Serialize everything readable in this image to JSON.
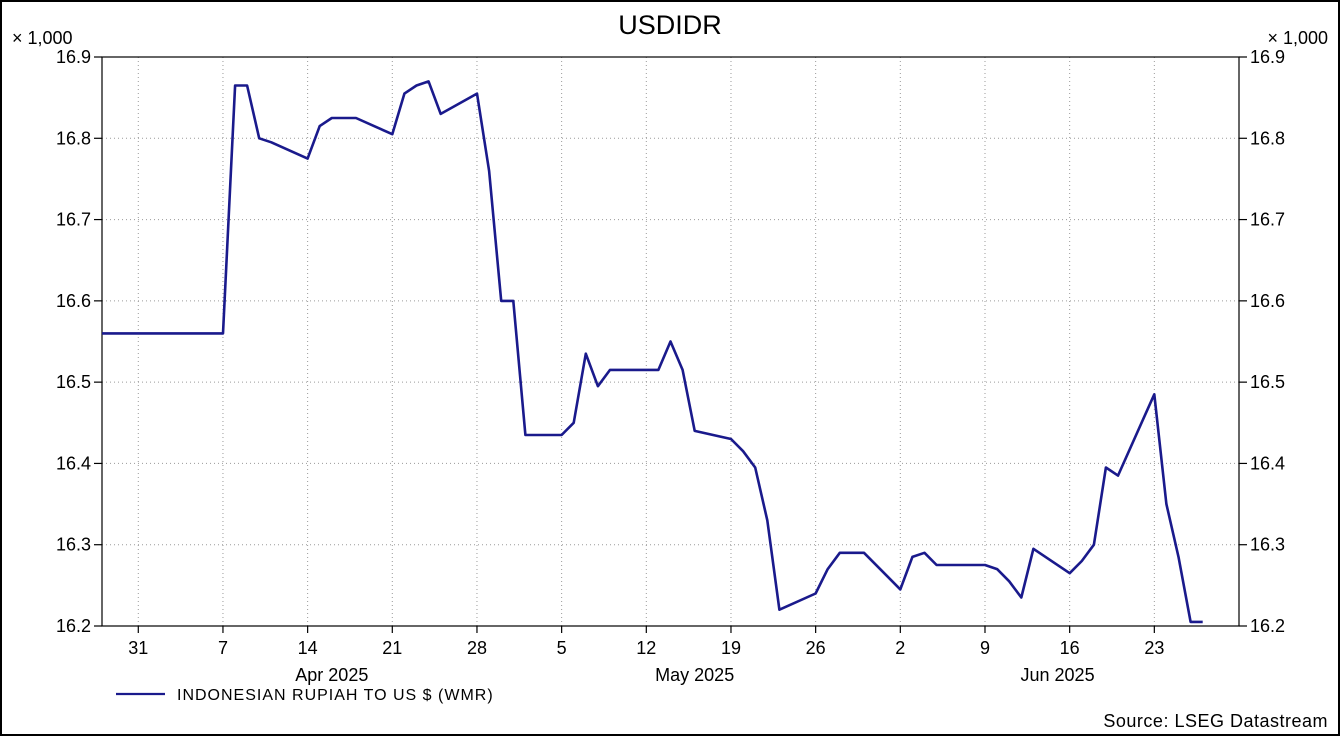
{
  "chart_data": {
    "type": "line",
    "title": "USDIDR",
    "unit_label": "× 1,000",
    "ylim": [
      16.2,
      16.9
    ],
    "y_ticks": [
      "16.2",
      "16.3",
      "16.4",
      "16.5",
      "16.6",
      "16.7",
      "16.8",
      "16.9"
    ],
    "x_range": [
      "2025-03-28",
      "2025-06-30"
    ],
    "x_ticks": [
      {
        "date": "2025-03-31",
        "label": "31"
      },
      {
        "date": "2025-04-07",
        "label": "7"
      },
      {
        "date": "2025-04-14",
        "label": "14"
      },
      {
        "date": "2025-04-21",
        "label": "21"
      },
      {
        "date": "2025-04-28",
        "label": "28"
      },
      {
        "date": "2025-05-05",
        "label": "5"
      },
      {
        "date": "2025-05-12",
        "label": "12"
      },
      {
        "date": "2025-05-19",
        "label": "19"
      },
      {
        "date": "2025-05-26",
        "label": "26"
      },
      {
        "date": "2025-06-02",
        "label": "2"
      },
      {
        "date": "2025-06-09",
        "label": "9"
      },
      {
        "date": "2025-06-16",
        "label": "16"
      },
      {
        "date": "2025-06-23",
        "label": "23"
      }
    ],
    "month_labels": [
      {
        "date": "2025-04-16",
        "label": "Apr 2025"
      },
      {
        "date": "2025-05-16",
        "label": "May 2025"
      },
      {
        "date": "2025-06-15",
        "label": "Jun 2025"
      }
    ],
    "grid": true,
    "legend_position": "bottom-left",
    "series": [
      {
        "name": "INDONESIAN RUPIAH TO US $ (WMR)",
        "color": "#1a1a8c",
        "points": [
          [
            "2025-03-28",
            16.56
          ],
          [
            "2025-03-31",
            16.56
          ],
          [
            "2025-04-01",
            16.56
          ],
          [
            "2025-04-02",
            16.56
          ],
          [
            "2025-04-03",
            16.56
          ],
          [
            "2025-04-04",
            16.56
          ],
          [
            "2025-04-07",
            16.56
          ],
          [
            "2025-04-08",
            16.865
          ],
          [
            "2025-04-09",
            16.865
          ],
          [
            "2025-04-10",
            16.8
          ],
          [
            "2025-04-11",
            16.795
          ],
          [
            "2025-04-14",
            16.775
          ],
          [
            "2025-04-15",
            16.815
          ],
          [
            "2025-04-16",
            16.825
          ],
          [
            "2025-04-17",
            16.825
          ],
          [
            "2025-04-18",
            16.825
          ],
          [
            "2025-04-21",
            16.805
          ],
          [
            "2025-04-22",
            16.855
          ],
          [
            "2025-04-23",
            16.865
          ],
          [
            "2025-04-24",
            16.87
          ],
          [
            "2025-04-25",
            16.83
          ],
          [
            "2025-04-28",
            16.855
          ],
          [
            "2025-04-29",
            16.76
          ],
          [
            "2025-04-30",
            16.6
          ],
          [
            "2025-05-01",
            16.6
          ],
          [
            "2025-05-02",
            16.435
          ],
          [
            "2025-05-05",
            16.435
          ],
          [
            "2025-05-06",
            16.45
          ],
          [
            "2025-05-07",
            16.535
          ],
          [
            "2025-05-08",
            16.495
          ],
          [
            "2025-05-09",
            16.515
          ],
          [
            "2025-05-12",
            16.515
          ],
          [
            "2025-05-13",
            16.515
          ],
          [
            "2025-05-14",
            16.55
          ],
          [
            "2025-05-15",
            16.515
          ],
          [
            "2025-05-16",
            16.44
          ],
          [
            "2025-05-19",
            16.43
          ],
          [
            "2025-05-20",
            16.415
          ],
          [
            "2025-05-21",
            16.395
          ],
          [
            "2025-05-22",
            16.33
          ],
          [
            "2025-05-23",
            16.22
          ],
          [
            "2025-05-26",
            16.24
          ],
          [
            "2025-05-27",
            16.27
          ],
          [
            "2025-05-28",
            16.29
          ],
          [
            "2025-05-29",
            16.29
          ],
          [
            "2025-05-30",
            16.29
          ],
          [
            "2025-06-02",
            16.245
          ],
          [
            "2025-06-03",
            16.285
          ],
          [
            "2025-06-04",
            16.29
          ],
          [
            "2025-06-05",
            16.275
          ],
          [
            "2025-06-06",
            16.275
          ],
          [
            "2025-06-09",
            16.275
          ],
          [
            "2025-06-10",
            16.27
          ],
          [
            "2025-06-11",
            16.255
          ],
          [
            "2025-06-12",
            16.235
          ],
          [
            "2025-06-13",
            16.295
          ],
          [
            "2025-06-16",
            16.265
          ],
          [
            "2025-06-17",
            16.28
          ],
          [
            "2025-06-18",
            16.3
          ],
          [
            "2025-06-19",
            16.395
          ],
          [
            "2025-06-20",
            16.385
          ],
          [
            "2025-06-23",
            16.485
          ],
          [
            "2025-06-24",
            16.35
          ],
          [
            "2025-06-25",
            16.285
          ],
          [
            "2025-06-26",
            16.205
          ],
          [
            "2025-06-27",
            16.205
          ]
        ]
      }
    ],
    "source": "Source: LSEG Datastream"
  }
}
